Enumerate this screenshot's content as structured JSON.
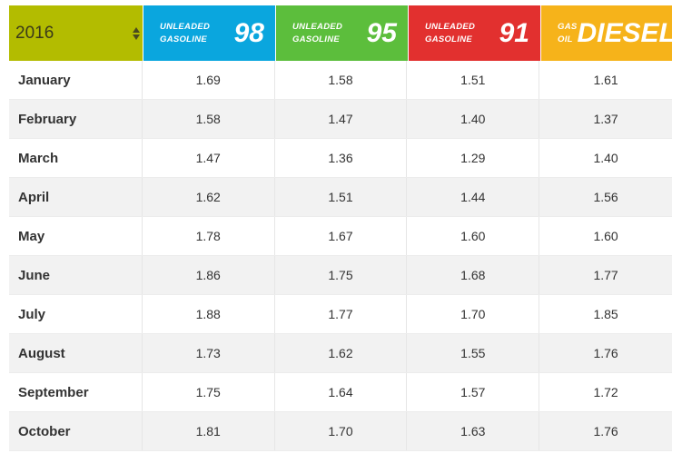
{
  "year_select": {
    "value": "2016"
  },
  "fuels": [
    {
      "small_lines": [
        "UNLEADED",
        "GASOLINE"
      ],
      "big": "98",
      "color": "#0aa6de"
    },
    {
      "small_lines": [
        "UNLEADED",
        "GASOLINE"
      ],
      "big": "95",
      "color": "#5cbe3c"
    },
    {
      "small_lines": [
        "UNLEADED",
        "GASOLINE"
      ],
      "big": "91",
      "color": "#e2302f"
    },
    {
      "small_lines": [
        "GAS",
        "OIL"
      ],
      "big": "DIESEL",
      "color": "#f6b31a"
    }
  ],
  "rows": [
    {
      "month": "January",
      "prices": [
        "1.69",
        "1.58",
        "1.51",
        "1.61"
      ]
    },
    {
      "month": "February",
      "prices": [
        "1.58",
        "1.47",
        "1.40",
        "1.37"
      ]
    },
    {
      "month": "March",
      "prices": [
        "1.47",
        "1.36",
        "1.29",
        "1.40"
      ]
    },
    {
      "month": "April",
      "prices": [
        "1.62",
        "1.51",
        "1.44",
        "1.56"
      ]
    },
    {
      "month": "May",
      "prices": [
        "1.78",
        "1.67",
        "1.60",
        "1.60"
      ]
    },
    {
      "month": "June",
      "prices": [
        "1.86",
        "1.75",
        "1.68",
        "1.77"
      ]
    },
    {
      "month": "July",
      "prices": [
        "1.88",
        "1.77",
        "1.70",
        "1.85"
      ]
    },
    {
      "month": "August",
      "prices": [
        "1.73",
        "1.62",
        "1.55",
        "1.76"
      ]
    },
    {
      "month": "September",
      "prices": [
        "1.75",
        "1.64",
        "1.57",
        "1.72"
      ]
    },
    {
      "month": "October",
      "prices": [
        "1.81",
        "1.70",
        "1.63",
        "1.76"
      ]
    }
  ]
}
